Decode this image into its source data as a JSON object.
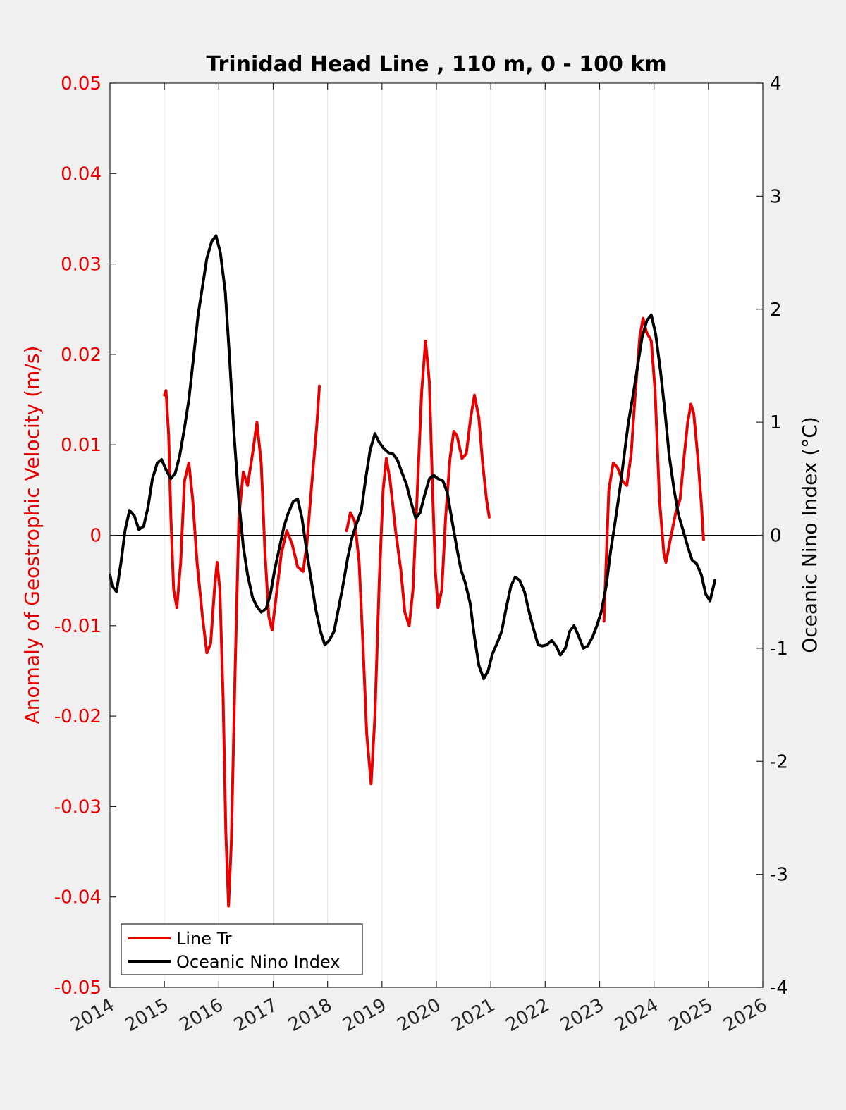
{
  "chart_data": {
    "type": "line",
    "title": "Trinidad Head Line , 110 m, 0 - 100 km",
    "ylabel_left": "Anomaly of Geostrophic Velocity (m/s)",
    "ylabel_right": "Oceanic Nino Index (°C)",
    "xlim": [
      2014,
      2026
    ],
    "ylim_left": [
      -0.05,
      0.05
    ],
    "ylim_right": [
      -4,
      4
    ],
    "x_ticks": [
      "2014",
      "2015",
      "2016",
      "2017",
      "2018",
      "2019",
      "2020",
      "2021",
      "2022",
      "2023",
      "2024",
      "2025",
      "2026"
    ],
    "y_left_ticks": [
      "0.05",
      "0.04",
      "0.03",
      "0.02",
      "0.01",
      "0",
      "-0.01",
      "-0.02",
      "-0.03",
      "-0.04",
      "-0.05"
    ],
    "y_right_ticks": [
      "4",
      "3",
      "2",
      "1",
      "0",
      "-1",
      "-2",
      "-3",
      "-4"
    ],
    "grid": "vertical",
    "legend_position": "bottom-left",
    "colors": {
      "line_tr": "#e60000",
      "oni": "#000000",
      "left_axis": "#e60000",
      "right_axis": "#000000"
    },
    "series": [
      {
        "name": "Line Tr",
        "axis": "left",
        "segments": [
          [
            [
              2015.0,
              0.0155
            ],
            [
              2015.03,
              0.016
            ],
            [
              2015.08,
              0.011
            ],
            [
              2015.12,
              0.002
            ],
            [
              2015.17,
              -0.006
            ],
            [
              2015.23,
              -0.008
            ],
            [
              2015.3,
              -0.003
            ],
            [
              2015.37,
              0.006
            ],
            [
              2015.45,
              0.008
            ],
            [
              2015.52,
              0.004
            ],
            [
              2015.6,
              -0.003
            ],
            [
              2015.7,
              -0.009
            ],
            [
              2015.78,
              -0.013
            ],
            [
              2015.85,
              -0.012
            ],
            [
              2015.92,
              -0.006
            ],
            [
              2015.97,
              -0.003
            ],
            [
              2016.02,
              -0.006
            ],
            [
              2016.08,
              -0.018
            ],
            [
              2016.13,
              -0.033
            ],
            [
              2016.18,
              -0.041
            ],
            [
              2016.23,
              -0.034
            ],
            [
              2016.3,
              -0.015
            ],
            [
              2016.37,
              0.002
            ],
            [
              2016.45,
              0.007
            ],
            [
              2016.53,
              0.0055
            ],
            [
              2016.62,
              0.009
            ],
            [
              2016.7,
              0.0125
            ],
            [
              2016.78,
              0.008
            ],
            [
              2016.85,
              -0.002
            ],
            [
              2016.92,
              -0.009
            ],
            [
              2016.98,
              -0.0105
            ],
            [
              2017.05,
              -0.007
            ],
            [
              2017.15,
              -0.002
            ],
            [
              2017.25,
              0.0005
            ],
            [
              2017.35,
              -0.001
            ],
            [
              2017.45,
              -0.0035
            ],
            [
              2017.55,
              -0.004
            ],
            [
              2017.62,
              -0.001
            ],
            [
              2017.7,
              0.005
            ],
            [
              2017.8,
              0.012
            ],
            [
              2017.85,
              0.0165
            ]
          ],
          [
            [
              2018.35,
              0.0005
            ],
            [
              2018.42,
              0.0025
            ],
            [
              2018.5,
              0.0015
            ],
            [
              2018.58,
              -0.003
            ],
            [
              2018.65,
              -0.012
            ],
            [
              2018.72,
              -0.022
            ],
            [
              2018.8,
              -0.0275
            ],
            [
              2018.87,
              -0.02
            ],
            [
              2018.95,
              -0.005
            ],
            [
              2019.02,
              0.005
            ],
            [
              2019.08,
              0.0085
            ],
            [
              2019.15,
              0.006
            ],
            [
              2019.25,
              0.0005
            ],
            [
              2019.35,
              -0.004
            ],
            [
              2019.42,
              -0.0085
            ],
            [
              2019.5,
              -0.01
            ],
            [
              2019.57,
              -0.006
            ],
            [
              2019.65,
              0.005
            ],
            [
              2019.73,
              0.016
            ],
            [
              2019.8,
              0.0215
            ],
            [
              2019.87,
              0.017
            ],
            [
              2019.93,
              0.005
            ],
            [
              2019.98,
              -0.004
            ],
            [
              2020.03,
              -0.008
            ],
            [
              2020.1,
              -0.006
            ],
            [
              2020.17,
              0.002
            ],
            [
              2020.25,
              0.0085
            ],
            [
              2020.32,
              0.0115
            ],
            [
              2020.38,
              0.011
            ],
            [
              2020.47,
              0.0085
            ],
            [
              2020.55,
              0.009
            ],
            [
              2020.63,
              0.013
            ],
            [
              2020.7,
              0.0155
            ],
            [
              2020.78,
              0.013
            ],
            [
              2020.85,
              0.008
            ],
            [
              2020.92,
              0.004
            ],
            [
              2020.97,
              0.002
            ]
          ],
          [
            [
              2023.08,
              -0.0095
            ],
            [
              2023.12,
              -0.003
            ],
            [
              2023.17,
              0.005
            ],
            [
              2023.25,
              0.008
            ],
            [
              2023.33,
              0.0075
            ],
            [
              2023.42,
              0.006
            ],
            [
              2023.5,
              0.0055
            ],
            [
              2023.58,
              0.009
            ],
            [
              2023.66,
              0.016
            ],
            [
              2023.74,
              0.022
            ],
            [
              2023.8,
              0.024
            ],
            [
              2023.86,
              0.0225
            ],
            [
              2023.95,
              0.0215
            ],
            [
              2024.02,
              0.016
            ],
            [
              2024.1,
              0.004
            ],
            [
              2024.18,
              -0.002
            ],
            [
              2024.22,
              -0.003
            ],
            [
              2024.3,
              -0.0005
            ],
            [
              2024.4,
              0.0025
            ],
            [
              2024.48,
              0.004
            ],
            [
              2024.55,
              0.0085
            ],
            [
              2024.62,
              0.0125
            ],
            [
              2024.68,
              0.0145
            ],
            [
              2024.73,
              0.0135
            ],
            [
              2024.8,
              0.009
            ],
            [
              2024.87,
              0.0035
            ],
            [
              2024.91,
              -0.0005
            ]
          ]
        ]
      },
      {
        "name": "Oceanic Nino Index",
        "axis": "right",
        "segments": [
          [
            [
              2014.0,
              -0.35
            ],
            [
              2014.04,
              -0.45
            ],
            [
              2014.12,
              -0.5
            ],
            [
              2014.2,
              -0.25
            ],
            [
              2014.28,
              0.05
            ],
            [
              2014.36,
              0.22
            ],
            [
              2014.45,
              0.17
            ],
            [
              2014.53,
              0.05
            ],
            [
              2014.62,
              0.08
            ],
            [
              2014.7,
              0.25
            ],
            [
              2014.78,
              0.5
            ],
            [
              2014.87,
              0.64
            ],
            [
              2014.95,
              0.67
            ],
            [
              2015.03,
              0.58
            ],
            [
              2015.12,
              0.5
            ],
            [
              2015.2,
              0.55
            ],
            [
              2015.28,
              0.7
            ],
            [
              2015.37,
              0.95
            ],
            [
              2015.45,
              1.2
            ],
            [
              2015.53,
              1.55
            ],
            [
              2015.62,
              1.95
            ],
            [
              2015.7,
              2.2
            ],
            [
              2015.78,
              2.45
            ],
            [
              2015.87,
              2.6
            ],
            [
              2015.95,
              2.65
            ],
            [
              2016.03,
              2.5
            ],
            [
              2016.12,
              2.15
            ],
            [
              2016.2,
              1.55
            ],
            [
              2016.28,
              0.9
            ],
            [
              2016.37,
              0.3
            ],
            [
              2016.45,
              -0.1
            ],
            [
              2016.53,
              -0.35
            ],
            [
              2016.62,
              -0.55
            ],
            [
              2016.7,
              -0.63
            ],
            [
              2016.78,
              -0.68
            ],
            [
              2016.87,
              -0.65
            ],
            [
              2016.95,
              -0.52
            ],
            [
              2017.03,
              -0.3
            ],
            [
              2017.12,
              -0.1
            ],
            [
              2017.2,
              0.08
            ],
            [
              2017.28,
              0.2
            ],
            [
              2017.37,
              0.3
            ],
            [
              2017.45,
              0.32
            ],
            [
              2017.53,
              0.15
            ],
            [
              2017.62,
              -0.15
            ],
            [
              2017.7,
              -0.4
            ],
            [
              2017.78,
              -0.65
            ],
            [
              2017.87,
              -0.85
            ],
            [
              2017.95,
              -0.97
            ],
            [
              2018.03,
              -0.93
            ],
            [
              2018.12,
              -0.85
            ],
            [
              2018.2,
              -0.65
            ],
            [
              2018.28,
              -0.45
            ],
            [
              2018.37,
              -0.2
            ],
            [
              2018.45,
              -0.02
            ],
            [
              2018.53,
              0.1
            ],
            [
              2018.62,
              0.22
            ],
            [
              2018.7,
              0.5
            ],
            [
              2018.78,
              0.75
            ],
            [
              2018.87,
              0.9
            ],
            [
              2018.95,
              0.82
            ],
            [
              2019.03,
              0.77
            ],
            [
              2019.12,
              0.73
            ],
            [
              2019.2,
              0.72
            ],
            [
              2019.28,
              0.67
            ],
            [
              2019.37,
              0.55
            ],
            [
              2019.45,
              0.45
            ],
            [
              2019.53,
              0.3
            ],
            [
              2019.62,
              0.15
            ],
            [
              2019.7,
              0.2
            ],
            [
              2019.78,
              0.35
            ],
            [
              2019.87,
              0.5
            ],
            [
              2019.95,
              0.53
            ],
            [
              2020.03,
              0.5
            ],
            [
              2020.12,
              0.48
            ],
            [
              2020.2,
              0.38
            ],
            [
              2020.28,
              0.15
            ],
            [
              2020.37,
              -0.1
            ],
            [
              2020.45,
              -0.3
            ],
            [
              2020.53,
              -0.42
            ],
            [
              2020.62,
              -0.6
            ],
            [
              2020.7,
              -0.9
            ],
            [
              2020.78,
              -1.15
            ],
            [
              2020.87,
              -1.27
            ],
            [
              2020.95,
              -1.2
            ],
            [
              2021.03,
              -1.05
            ],
            [
              2021.12,
              -0.95
            ],
            [
              2021.2,
              -0.85
            ],
            [
              2021.28,
              -0.65
            ],
            [
              2021.37,
              -0.45
            ],
            [
              2021.45,
              -0.37
            ],
            [
              2021.53,
              -0.4
            ],
            [
              2021.62,
              -0.5
            ],
            [
              2021.7,
              -0.67
            ],
            [
              2021.78,
              -0.82
            ],
            [
              2021.87,
              -0.97
            ],
            [
              2021.95,
              -0.98
            ],
            [
              2022.03,
              -0.97
            ],
            [
              2022.12,
              -0.93
            ],
            [
              2022.2,
              -0.98
            ],
            [
              2022.28,
              -1.06
            ],
            [
              2022.37,
              -1.0
            ],
            [
              2022.45,
              -0.85
            ],
            [
              2022.53,
              -0.8
            ],
            [
              2022.62,
              -0.9
            ],
            [
              2022.7,
              -1.0
            ],
            [
              2022.78,
              -0.98
            ],
            [
              2022.87,
              -0.9
            ],
            [
              2022.95,
              -0.8
            ],
            [
              2023.03,
              -0.68
            ],
            [
              2023.12,
              -0.45
            ],
            [
              2023.2,
              -0.15
            ],
            [
              2023.28,
              0.1
            ],
            [
              2023.37,
              0.4
            ],
            [
              2023.45,
              0.7
            ],
            [
              2023.53,
              1.0
            ],
            [
              2023.62,
              1.25
            ],
            [
              2023.7,
              1.5
            ],
            [
              2023.78,
              1.75
            ],
            [
              2023.87,
              1.9
            ],
            [
              2023.95,
              1.95
            ],
            [
              2024.03,
              1.78
            ],
            [
              2024.12,
              1.45
            ],
            [
              2024.2,
              1.1
            ],
            [
              2024.28,
              0.7
            ],
            [
              2024.37,
              0.4
            ],
            [
              2024.45,
              0.18
            ],
            [
              2024.53,
              0.05
            ],
            [
              2024.62,
              -0.1
            ],
            [
              2024.7,
              -0.22
            ],
            [
              2024.78,
              -0.25
            ],
            [
              2024.87,
              -0.35
            ],
            [
              2024.95,
              -0.52
            ],
            [
              2025.03,
              -0.58
            ],
            [
              2025.12,
              -0.4
            ]
          ]
        ]
      }
    ]
  }
}
